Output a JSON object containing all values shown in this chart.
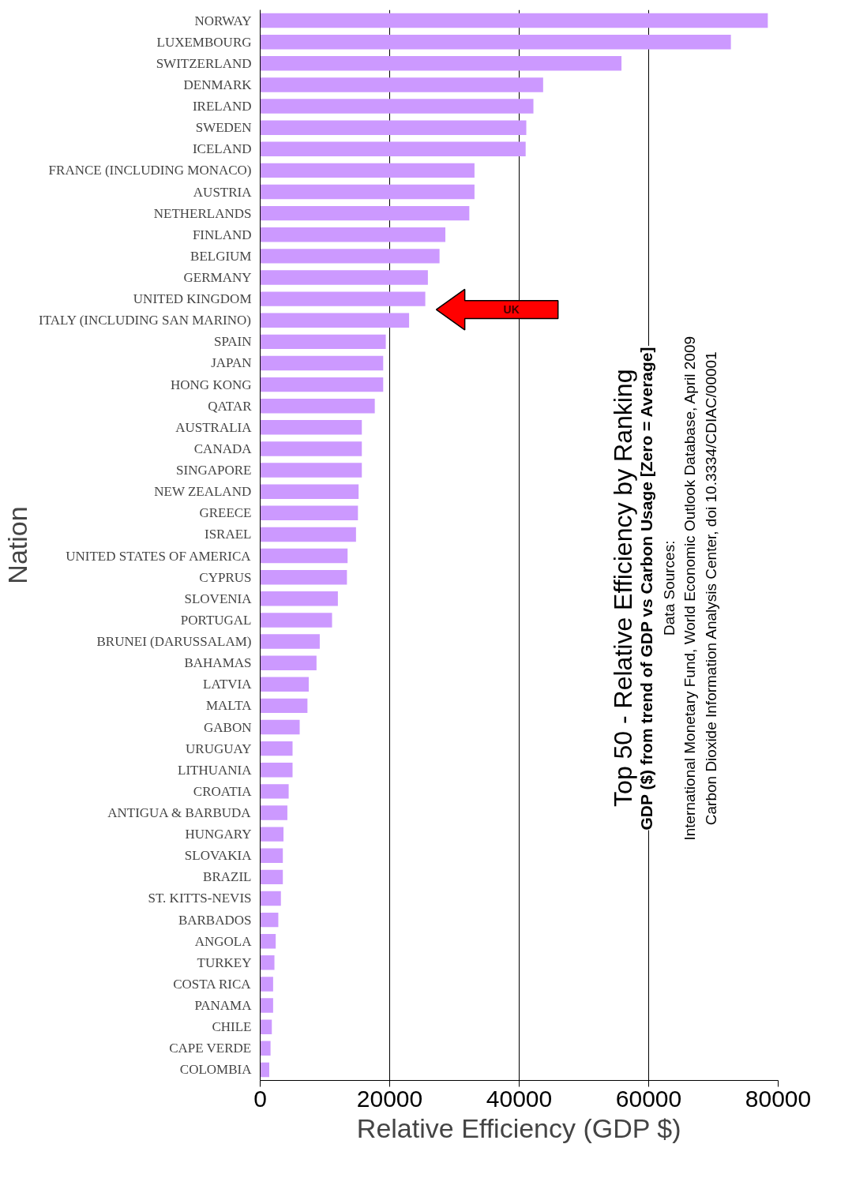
{
  "chart_data": {
    "type": "bar",
    "orientation": "horizontal",
    "title": "Top 50 - Relative Efficiency by Ranking",
    "subtitle": "GDP ($) from trend of GDP vs Carbon Usage [Zero = Average]",
    "xlabel": "Relative Efficiency (GDP $)",
    "ylabel": "Nation",
    "categories": [
      "NORWAY",
      "LUXEMBOURG",
      "SWITZERLAND",
      "DENMARK",
      "IRELAND",
      "SWEDEN",
      "ICELAND",
      "FRANCE (INCLUDING MONACO)",
      "AUSTRIA",
      "NETHERLANDS",
      "FINLAND",
      "BELGIUM",
      "GERMANY",
      "UNITED KINGDOM",
      "ITALY (INCLUDING SAN MARINO)",
      "SPAIN",
      "JAPAN",
      "HONG KONG",
      "QATAR",
      "AUSTRALIA",
      "CANADA",
      "SINGAPORE",
      "NEW ZEALAND",
      "GREECE",
      "ISRAEL",
      "UNITED STATES OF AMERICA",
      "CYPRUS",
      "SLOVENIA",
      "PORTUGAL",
      "BRUNEI (DARUSSALAM)",
      "BAHAMAS",
      "LATVIA",
      "MALTA",
      "GABON",
      "URUGUAY",
      "LITHUANIA",
      "CROATIA",
      "ANTIGUA & BARBUDA",
      "HUNGARY",
      "SLOVAKIA",
      "BRAZIL",
      "ST. KITTS-NEVIS",
      "BARBADOS",
      "ANGOLA",
      "TURKEY",
      "COSTA RICA",
      "PANAMA",
      "CHILE",
      "CAPE VERDE",
      "COLOMBIA"
    ],
    "values": [
      78400,
      72700,
      55800,
      43700,
      42200,
      41100,
      41000,
      33100,
      33100,
      32300,
      28600,
      27700,
      25900,
      25500,
      23000,
      19400,
      19000,
      19000,
      17700,
      15700,
      15700,
      15700,
      15200,
      15100,
      14800,
      13500,
      13400,
      12000,
      11100,
      9200,
      8700,
      7500,
      7300,
      6100,
      5000,
      5000,
      4400,
      4200,
      3600,
      3500,
      3500,
      3200,
      2800,
      2400,
      2200,
      2000,
      2000,
      1800,
      1600,
      1400
    ],
    "color": "#cc99ff",
    "xlim": [
      0,
      80000
    ],
    "xticks": [
      0,
      20000,
      40000,
      60000,
      80000
    ],
    "grid": "x",
    "annotations": [
      "UK",
      "Data Sources:",
      "International Monetary Fund, World Economic Outlook Database, April 2009",
      "Carbon Dioxide Information Analysis Center, doi 10.3334/CDIAC/00001"
    ]
  }
}
